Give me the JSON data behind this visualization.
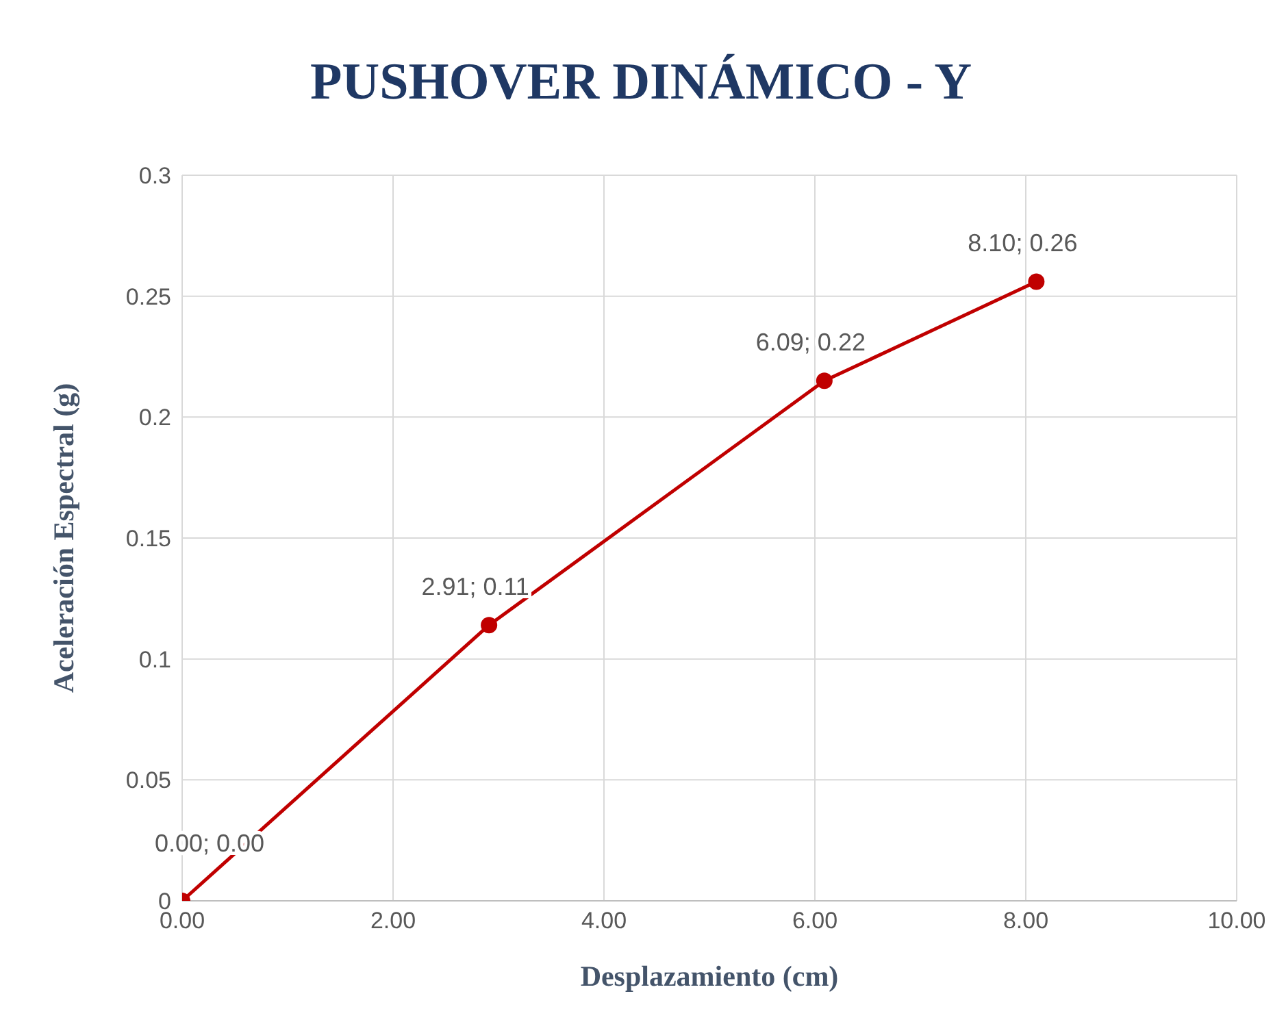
{
  "chart_data": {
    "type": "line",
    "title": "PUSHOVER DINÁMICO - Y",
    "xlabel": "Desplazamiento (cm)",
    "ylabel": "Aceleración Espectral (g)",
    "x": [
      0,
      2.91,
      6.09,
      8.1
    ],
    "series": [
      {
        "color": "#c00000",
        "values": [
          0,
          0.114,
          0.215,
          0.256
        ],
        "value_labels": [
          "0.00; 0.00",
          "2.91; 0.11",
          "6.09; 0.22",
          "8.10; 0.26"
        ]
      }
    ],
    "xlim": [
      0,
      10
    ],
    "xticks": [
      {
        "value": 0,
        "label": "0.00"
      },
      {
        "value": 2,
        "label": "2.00"
      },
      {
        "value": 4,
        "label": "4.00"
      },
      {
        "value": 6,
        "label": "6.00"
      },
      {
        "value": 8,
        "label": "8.00"
      },
      {
        "value": 10,
        "label": "10.00"
      }
    ],
    "ylim": [
      0,
      0.3
    ],
    "yticks": [
      0,
      0.05,
      0.1,
      0.15,
      0.2,
      0.25,
      0.3
    ],
    "grid": true,
    "legend": false,
    "marker": "circle",
    "line_style": "solid"
  }
}
